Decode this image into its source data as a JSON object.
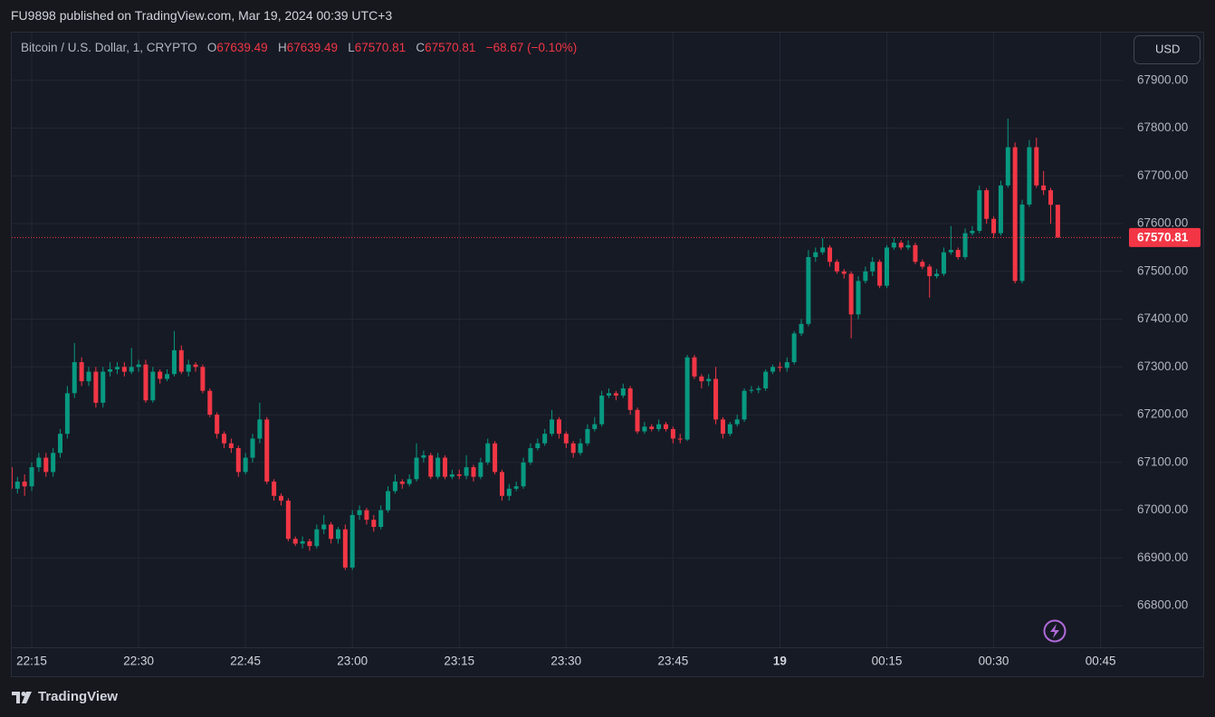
{
  "header": {
    "publisher": "FU9898 published on TradingView.com, Mar 19, 2024 00:39 UTC+3"
  },
  "footer": {
    "logo": "TradingView"
  },
  "chart_data": {
    "type": "candlestick",
    "title": "Bitcoin / U.S. Dollar, 1, CRYPTO",
    "ohlc_letters": [
      "O",
      "H",
      "L",
      "C"
    ],
    "change": "−68.67 (−0.10%)",
    "currency": "USD",
    "up_color": "#089981",
    "down_color": "#f23645",
    "grid": true,
    "last_price_line": true,
    "open": [
      67090,
      67045,
      67060,
      67050,
      67090,
      67110,
      67080,
      67120,
      67160,
      67245,
      67310,
      67270,
      67290,
      67225,
      67290,
      67295,
      67300,
      67290,
      67300,
      67305,
      67230,
      67290,
      67275,
      67285,
      67335,
      67290,
      67305,
      67300,
      67250,
      67200,
      67160,
      67140,
      67130,
      67080,
      67110,
      67150,
      67190,
      67060,
      67030,
      67020,
      66940,
      66930,
      66935,
      66925,
      66960,
      66970,
      66940,
      66960,
      66880,
      66990,
      67000,
      66980,
      66965,
      67000,
      67040,
      67060,
      67055,
      67065,
      67110,
      67115,
      67070,
      67110,
      67070,
      67075,
      67072,
      67090,
      67070,
      67100,
      67140,
      67080,
      67030,
      67045,
      67050,
      67100,
      67130,
      67140,
      67160,
      67190,
      67160,
      67140,
      67120,
      67140,
      67170,
      67180,
      67240,
      67245,
      67240,
      67255,
      67210,
      67165,
      67175,
      67170,
      67180,
      67170,
      67150,
      67148,
      67320,
      67280,
      67270,
      67275,
      67190,
      67160,
      67180,
      67190,
      67250,
      67252,
      67255,
      67290,
      67300,
      67298,
      67310,
      67370,
      67390,
      67530,
      67540,
      67550,
      67520,
      67500,
      67495,
      67410,
      67480,
      67500,
      67520,
      67470,
      67550,
      67560,
      67550,
      67555,
      67520,
      67510,
      67490,
      67495,
      67540,
      67545,
      67530,
      67580,
      67585,
      67670,
      67610,
      67580,
      67680,
      67760,
      67480,
      67640,
      67760,
      67680,
      67670,
      67639.49
    ],
    "high": [
      67125,
      67070,
      67075,
      67100,
      67120,
      67120,
      67130,
      67170,
      67260,
      67350,
      67320,
      67300,
      67300,
      67300,
      67310,
      67310,
      67310,
      67340,
      67315,
      67315,
      67300,
      67295,
      67295,
      67375,
      67345,
      67315,
      67310,
      67305,
      67255,
      67205,
      67165,
      67150,
      67135,
      67120,
      67160,
      67225,
      67195,
      67065,
      67035,
      67025,
      66945,
      66945,
      66940,
      66970,
      66990,
      66975,
      66965,
      66970,
      67000,
      67010,
      67005,
      66990,
      67010,
      67050,
      67075,
      67065,
      67075,
      67140,
      67125,
      67120,
      67120,
      67115,
      67085,
      67085,
      67115,
      67095,
      67110,
      67150,
      67145,
      67085,
      67055,
      67060,
      67110,
      67140,
      67150,
      67170,
      67210,
      67195,
      67165,
      67145,
      67150,
      67180,
      67195,
      67250,
      67255,
      67250,
      67265,
      67260,
      67215,
      67185,
      67180,
      67190,
      67185,
      67175,
      67160,
      67325,
      67325,
      67285,
      67285,
      67300,
      67195,
      67185,
      67200,
      67255,
      67260,
      67260,
      67295,
      67305,
      67310,
      67320,
      67375,
      67400,
      67545,
      67550,
      67570,
      67555,
      67525,
      67505,
      67500,
      67490,
      67510,
      67530,
      67525,
      67555,
      67570,
      67565,
      67565,
      67560,
      67525,
      67515,
      67505,
      67550,
      67595,
      67550,
      67590,
      67595,
      67680,
      67675,
      67615,
      67690,
      67820,
      67770,
      67650,
      67775,
      67780,
      67710,
      67675,
      67639.49
    ],
    "low": [
      67035,
      67035,
      67030,
      67040,
      67080,
      67070,
      67070,
      67110,
      67150,
      67235,
      67260,
      67260,
      67215,
      67215,
      67280,
      67285,
      67280,
      67285,
      67290,
      67225,
      67225,
      67265,
      67270,
      67280,
      67285,
      67280,
      67290,
      67245,
      67195,
      67150,
      67130,
      67120,
      67070,
      67075,
      67100,
      67140,
      67055,
      67020,
      67010,
      66935,
      66925,
      66920,
      66915,
      66920,
      66950,
      66930,
      66930,
      66875,
      66875,
      66980,
      66970,
      66955,
      66960,
      66995,
      67035,
      67045,
      67050,
      67060,
      67100,
      67065,
      67065,
      67065,
      67065,
      67065,
      67065,
      67060,
      67065,
      67095,
      67075,
      67020,
      67020,
      67040,
      67045,
      67095,
      67125,
      67135,
      67155,
      67150,
      67130,
      67110,
      67115,
      67135,
      67165,
      67175,
      67235,
      67230,
      67235,
      67200,
      67160,
      67160,
      67165,
      67165,
      67165,
      67140,
      67140,
      67145,
      67275,
      67255,
      67260,
      67180,
      67150,
      67155,
      67175,
      67185,
      67245,
      67245,
      67250,
      67285,
      67290,
      67290,
      67305,
      67365,
      67385,
      67520,
      67535,
      67510,
      67495,
      67485,
      67360,
      67400,
      67475,
      67490,
      67465,
      67465,
      67545,
      67545,
      67545,
      67515,
      67505,
      67445,
      67485,
      67490,
      67535,
      67525,
      67525,
      67575,
      67580,
      67600,
      67570,
      67575,
      67675,
      67475,
      67475,
      67635,
      67675,
      67660,
      67600,
      67570.81
    ],
    "close": [
      67045,
      67060,
      67050,
      67090,
      67110,
      67080,
      67120,
      67160,
      67245,
      67310,
      67270,
      67290,
      67225,
      67290,
      67295,
      67300,
      67290,
      67300,
      67305,
      67230,
      67290,
      67275,
      67285,
      67335,
      67290,
      67305,
      67300,
      67250,
      67200,
      67160,
      67140,
      67130,
      67080,
      67110,
      67150,
      67190,
      67060,
      67030,
      67020,
      66940,
      66930,
      66935,
      66925,
      66960,
      66970,
      66940,
      66960,
      66880,
      66990,
      67000,
      66980,
      66965,
      67000,
      67040,
      67060,
      67055,
      67065,
      67110,
      67115,
      67070,
      67110,
      67070,
      67075,
      67072,
      67090,
      67070,
      67100,
      67140,
      67080,
      67030,
      67045,
      67050,
      67100,
      67130,
      67140,
      67160,
      67190,
      67160,
      67140,
      67120,
      67140,
      67170,
      67180,
      67240,
      67245,
      67240,
      67255,
      67210,
      67165,
      67175,
      67170,
      67180,
      67170,
      67150,
      67148,
      67320,
      67280,
      67270,
      67275,
      67190,
      67160,
      67180,
      67190,
      67250,
      67252,
      67255,
      67290,
      67300,
      67298,
      67310,
      67370,
      67390,
      67530,
      67540,
      67550,
      67520,
      67500,
      67495,
      67410,
      67480,
      67500,
      67520,
      67470,
      67550,
      67560,
      67550,
      67555,
      67520,
      67510,
      67490,
      67495,
      67540,
      67545,
      67530,
      67580,
      67585,
      67670,
      67610,
      67580,
      67680,
      67760,
      67480,
      67640,
      67760,
      67680,
      67670,
      67639.49,
      67570.81
    ],
    "ylim": [
      66713,
      68000
    ],
    "yticks": [
      {
        "value": 66800,
        "label": "66800.00"
      },
      {
        "value": 66900,
        "label": "66900.00"
      },
      {
        "value": 67000,
        "label": "67000.00"
      },
      {
        "value": 67100,
        "label": "67100.00"
      },
      {
        "value": 67200,
        "label": "67200.00"
      },
      {
        "value": 67300,
        "label": "67300.00"
      },
      {
        "value": 67400,
        "label": "67400.00"
      },
      {
        "value": 67500,
        "label": "67500.00"
      },
      {
        "value": 67600,
        "label": "67600.00"
      },
      {
        "value": 67700,
        "label": "67700.00"
      },
      {
        "value": 67800,
        "label": "67800.00"
      },
      {
        "value": 67900,
        "label": "67900.00"
      }
    ],
    "xlim": [
      0.2,
      156.1
    ],
    "xticks": [
      {
        "value": 3,
        "label": "22:15"
      },
      {
        "value": 18,
        "label": "22:30"
      },
      {
        "value": 33,
        "label": "22:45"
      },
      {
        "value": 48,
        "label": "23:00"
      },
      {
        "value": 63,
        "label": "23:15"
      },
      {
        "value": 78,
        "label": "23:30"
      },
      {
        "value": 93,
        "label": "23:45"
      },
      {
        "value": 108,
        "label": "19"
      },
      {
        "value": 123,
        "label": "00:15"
      },
      {
        "value": 138,
        "label": "00:30"
      },
      {
        "value": 153,
        "label": "00:45"
      }
    ]
  }
}
